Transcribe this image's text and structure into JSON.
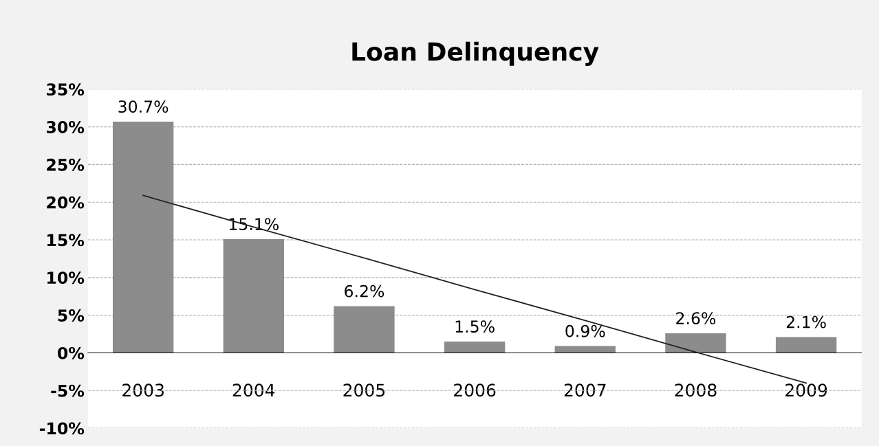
{
  "chart_data": {
    "type": "bar",
    "title": "Loan Delinquency",
    "categories": [
      "2003",
      "2004",
      "2005",
      "2006",
      "2007",
      "2008",
      "2009"
    ],
    "series": [
      {
        "color": "#8c8c8c",
        "values": [
          30.7,
          15.1,
          6.2,
          1.5,
          0.9,
          2.6,
          2.1
        ],
        "value_labels": [
          "30.7%",
          "15.1%",
          "6.2%",
          "1.5%",
          "0.9%",
          "2.6%",
          "2.1%"
        ]
      },
      {
        "type": "line",
        "color": "#222222",
        "values": [
          20.9,
          16.7,
          12.6,
          8.4,
          4.3,
          0.1,
          -4.0
        ]
      }
    ],
    "ylim": [
      -10,
      35
    ],
    "yticks": [
      {
        "value": -10,
        "label": "-10%"
      },
      {
        "value": -5,
        "label": "-5%"
      },
      {
        "value": 0,
        "label": "0%"
      },
      {
        "value": 5,
        "label": "5%"
      },
      {
        "value": 10,
        "label": "10%"
      },
      {
        "value": 15,
        "label": "15%"
      },
      {
        "value": 20,
        "label": "20%"
      },
      {
        "value": 25,
        "label": "25%"
      },
      {
        "value": 30,
        "label": "30%"
      },
      {
        "value": 35,
        "label": "35%"
      }
    ],
    "grid": "y"
  }
}
